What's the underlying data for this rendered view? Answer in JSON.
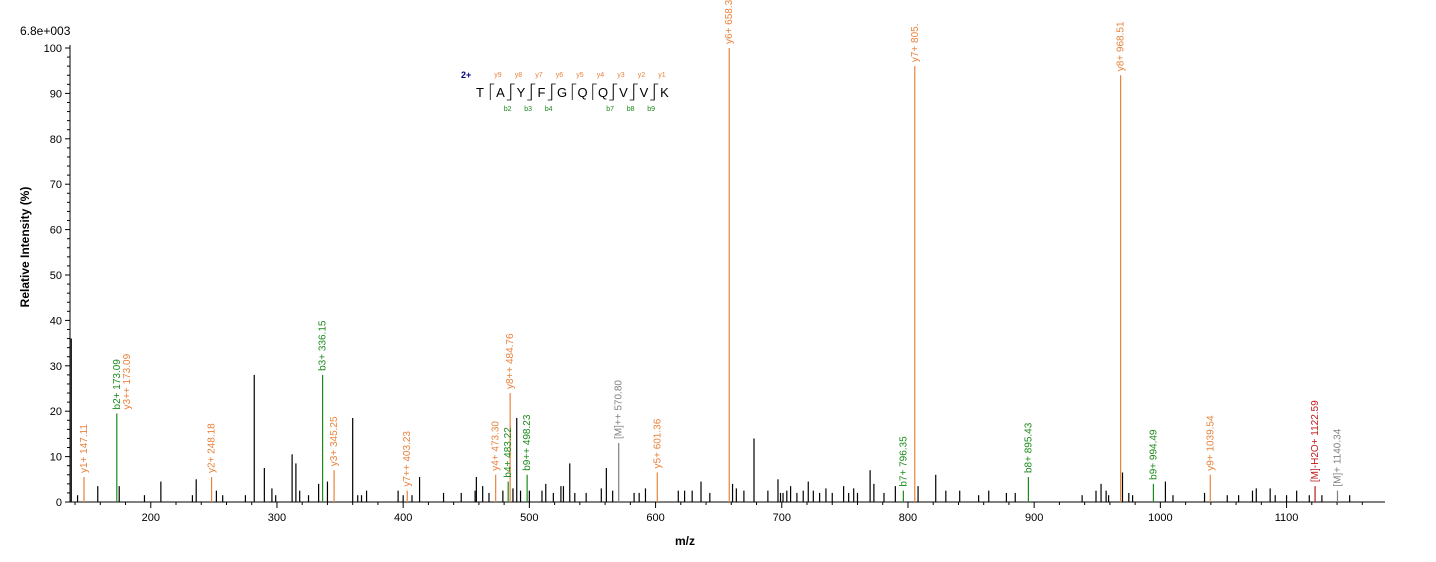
{
  "chart_data": {
    "type": "bar",
    "title": "",
    "max_intensity_label": "6.8e+003",
    "xlabel": "m/z",
    "ylabel": "Relative   Intensity (%)",
    "xlim": [
      136,
      1178
    ],
    "ylim": [
      0,
      100
    ],
    "x_ticks": [
      200,
      300,
      400,
      500,
      600,
      700,
      800,
      900,
      1000,
      1100
    ],
    "y_ticks": [
      0,
      10,
      20,
      30,
      40,
      50,
      60,
      70,
      80,
      90,
      100
    ],
    "colors": {
      "y": "#e8823c",
      "b": "#1a8a1a",
      "precursor": "#808080",
      "neutral_loss": "#c01818",
      "other": "#000000",
      "charge": "#000080"
    },
    "annotated_peaks": [
      {
        "mz": 147.11,
        "intensity": 5.5,
        "ion": "y",
        "label": "y1+ 147.11"
      },
      {
        "mz": 173.09,
        "intensity": 19.5,
        "ion": "b",
        "label": "b2+ 173.09"
      },
      {
        "mz": 173.09,
        "intensity": 19.5,
        "ion": "y",
        "label": "y3++ 173.09",
        "offset": 1
      },
      {
        "mz": 248.18,
        "intensity": 5.5,
        "ion": "y",
        "label": "y2+ 248.18"
      },
      {
        "mz": 336.15,
        "intensity": 28,
        "ion": "b",
        "label": "b3+ 336.15"
      },
      {
        "mz": 345.25,
        "intensity": 7,
        "ion": "y",
        "label": "y3+ 345.25"
      },
      {
        "mz": 403.23,
        "intensity": 2.5,
        "ion": "y",
        "label": "y7++ 403.23"
      },
      {
        "mz": 473.3,
        "intensity": 6,
        "ion": "y",
        "label": "y4+ 473.30"
      },
      {
        "mz": 483.22,
        "intensity": 4.5,
        "ion": "b",
        "label": "b4+ 483.22"
      },
      {
        "mz": 484.76,
        "intensity": 24,
        "ion": "y",
        "label": "y8++ 484.76"
      },
      {
        "mz": 498.23,
        "intensity": 6,
        "ion": "b",
        "label": "b9++ 498.23"
      },
      {
        "mz": 570.8,
        "intensity": 13,
        "ion": "precursor",
        "label": "[M]++ 570.80"
      },
      {
        "mz": 601.36,
        "intensity": 6.5,
        "ion": "y",
        "label": "y5+ 601.36"
      },
      {
        "mz": 658.38,
        "intensity": 100,
        "ion": "y",
        "label": "y6+ 658.38"
      },
      {
        "mz": 796.35,
        "intensity": 2.5,
        "ion": "b",
        "label": "b7+ 796.35"
      },
      {
        "mz": 805.4,
        "intensity": 96,
        "ion": "y",
        "label": "y7+ 805."
      },
      {
        "mz": 895.43,
        "intensity": 5.5,
        "ion": "b",
        "label": "b8+ 895.43"
      },
      {
        "mz": 968.51,
        "intensity": 94,
        "ion": "y",
        "label": "y8+ 968.51"
      },
      {
        "mz": 994.49,
        "intensity": 4,
        "ion": "b",
        "label": "b9+ 994.49"
      },
      {
        "mz": 1039.54,
        "intensity": 6,
        "ion": "y",
        "label": "y9+ 1039.54"
      },
      {
        "mz": 1122.59,
        "intensity": 3.5,
        "ion": "neutral_loss",
        "label": "[M]-H2O+ 1122.59"
      },
      {
        "mz": 1140.34,
        "intensity": 2.5,
        "ion": "precursor",
        "label": "[M]+ 1140.34"
      }
    ],
    "unannotated_peaks": [
      [
        137,
        36
      ],
      [
        142,
        1.5
      ],
      [
        158,
        3.5
      ],
      [
        175,
        3.5
      ],
      [
        195,
        1.5
      ],
      [
        208,
        4.5
      ],
      [
        233,
        1.5
      ],
      [
        236,
        5
      ],
      [
        252,
        2.5
      ],
      [
        257,
        1.5
      ],
      [
        275,
        1.5
      ],
      [
        282,
        28
      ],
      [
        290,
        7.5
      ],
      [
        296,
        3
      ],
      [
        299,
        1.5
      ],
      [
        312,
        10.5
      ],
      [
        315,
        8.5
      ],
      [
        318,
        2.5
      ],
      [
        325,
        1.5
      ],
      [
        333,
        4
      ],
      [
        340,
        4.5
      ],
      [
        360,
        18.5
      ],
      [
        364,
        1.5
      ],
      [
        367,
        1.5
      ],
      [
        371,
        2.5
      ],
      [
        396,
        2.5
      ],
      [
        400,
        1.5
      ],
      [
        407,
        1.5
      ],
      [
        413,
        5.5
      ],
      [
        432,
        2
      ],
      [
        446,
        2
      ],
      [
        457,
        2.5
      ],
      [
        458,
        5.5
      ],
      [
        463,
        3.5
      ],
      [
        468,
        2
      ],
      [
        479,
        2.5
      ],
      [
        487,
        3
      ],
      [
        490,
        18.5
      ],
      [
        493,
        2.5
      ],
      [
        500,
        2.5
      ],
      [
        510,
        2.5
      ],
      [
        513,
        4
      ],
      [
        519,
        2
      ],
      [
        525,
        3.5
      ],
      [
        527,
        3.5
      ],
      [
        532,
        8.5
      ],
      [
        536,
        2
      ],
      [
        545,
        2
      ],
      [
        557,
        3
      ],
      [
        561,
        7.5
      ],
      [
        566,
        2.5
      ],
      [
        583,
        2
      ],
      [
        587,
        2
      ],
      [
        592,
        3
      ],
      [
        618,
        2.5
      ],
      [
        623,
        2.5
      ],
      [
        629,
        2.5
      ],
      [
        636,
        4.5
      ],
      [
        643,
        2
      ],
      [
        661,
        4
      ],
      [
        664,
        3
      ],
      [
        670,
        2.5
      ],
      [
        678,
        14
      ],
      [
        689,
        2.5
      ],
      [
        697,
        5
      ],
      [
        699,
        2
      ],
      [
        701,
        2
      ],
      [
        704,
        2.5
      ],
      [
        707,
        3.5
      ],
      [
        712,
        2
      ],
      [
        717,
        2.5
      ],
      [
        721,
        4.5
      ],
      [
        725,
        2.5
      ],
      [
        730,
        2
      ],
      [
        735,
        3
      ],
      [
        740,
        2
      ],
      [
        749,
        3.5
      ],
      [
        753,
        2
      ],
      [
        757,
        3
      ],
      [
        760,
        2
      ],
      [
        770,
        7
      ],
      [
        773,
        4
      ],
      [
        781,
        2
      ],
      [
        790,
        3.5
      ],
      [
        808,
        3.5
      ],
      [
        822,
        6
      ],
      [
        830,
        2.5
      ],
      [
        841,
        2.5
      ],
      [
        856,
        1.5
      ],
      [
        864,
        2.5
      ],
      [
        878,
        2
      ],
      [
        885,
        2
      ],
      [
        938,
        1.5
      ],
      [
        949,
        2.5
      ],
      [
        953,
        4
      ],
      [
        957,
        2.5
      ],
      [
        959,
        1.5
      ],
      [
        970,
        6.5
      ],
      [
        975,
        2
      ],
      [
        978,
        1.5
      ],
      [
        1004,
        4.5
      ],
      [
        1010,
        1.5
      ],
      [
        1035,
        2
      ],
      [
        1053,
        1.5
      ],
      [
        1062,
        1.5
      ],
      [
        1073,
        2.5
      ],
      [
        1076,
        3
      ],
      [
        1087,
        3
      ],
      [
        1091,
        1.5
      ],
      [
        1100,
        1.5
      ],
      [
        1108,
        2.5
      ],
      [
        1118,
        1.5
      ],
      [
        1128,
        1.5
      ],
      [
        1150,
        1.5
      ]
    ],
    "sequence": {
      "charge": "2+",
      "residues": [
        "T",
        "A",
        "Y",
        "F",
        "G",
        "Q",
        "Q",
        "V",
        "V",
        "K"
      ],
      "y_ions": [
        {
          "after": 0,
          "label": "y9"
        },
        {
          "after": 1,
          "label": "y8"
        },
        {
          "after": 2,
          "label": "y7"
        },
        {
          "after": 3,
          "label": "y6"
        },
        {
          "after": 4,
          "label": "y5"
        },
        {
          "after": 5,
          "label": "y4"
        },
        {
          "after": 6,
          "label": "y3"
        },
        {
          "after": 7,
          "label": "y2"
        },
        {
          "after": 8,
          "label": "y1"
        }
      ],
      "b_ions": [
        {
          "after": 1,
          "label": "b2"
        },
        {
          "after": 2,
          "label": "b3"
        },
        {
          "after": 3,
          "label": "b4"
        },
        {
          "after": 6,
          "label": "b7"
        },
        {
          "after": 7,
          "label": "b8"
        },
        {
          "after": 8,
          "label": "b9"
        }
      ]
    }
  }
}
